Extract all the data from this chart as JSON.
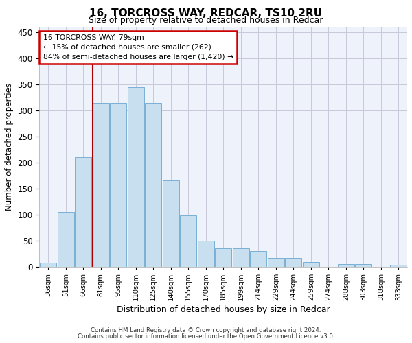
{
  "title1": "16, TORCROSS WAY, REDCAR, TS10 2RU",
  "title2": "Size of property relative to detached houses in Redcar",
  "xlabel": "Distribution of detached houses by size in Redcar",
  "ylabel": "Number of detached properties",
  "categories": [
    "36sqm",
    "51sqm",
    "66sqm",
    "81sqm",
    "95sqm",
    "110sqm",
    "125sqm",
    "140sqm",
    "155sqm",
    "170sqm",
    "185sqm",
    "199sqm",
    "214sqm",
    "229sqm",
    "244sqm",
    "259sqm",
    "274sqm",
    "288sqm",
    "303sqm",
    "318sqm",
    "333sqm"
  ],
  "values": [
    7,
    105,
    210,
    315,
    315,
    345,
    315,
    165,
    98,
    50,
    35,
    35,
    30,
    17,
    17,
    9,
    0,
    5,
    5,
    0,
    3
  ],
  "bar_color": "#c8dff0",
  "bar_edge_color": "#7aafd4",
  "vline_color": "#aa0000",
  "annotation_line1": "16 TORCROSS WAY: 79sqm",
  "annotation_line2": "← 15% of detached houses are smaller (262)",
  "annotation_line3": "84% of semi-detached houses are larger (1,420) →",
  "annotation_box_color": "#cc0000",
  "ylim": [
    0,
    460
  ],
  "yticks": [
    0,
    50,
    100,
    150,
    200,
    250,
    300,
    350,
    400,
    450
  ],
  "bg_color": "#eef2fa",
  "grid_color": "#c8c8d8",
  "title1_fontsize": 11,
  "title2_fontsize": 9,
  "footer_line1": "Contains HM Land Registry data © Crown copyright and database right 2024.",
  "footer_line2": "Contains public sector information licensed under the Open Government Licence v3.0."
}
